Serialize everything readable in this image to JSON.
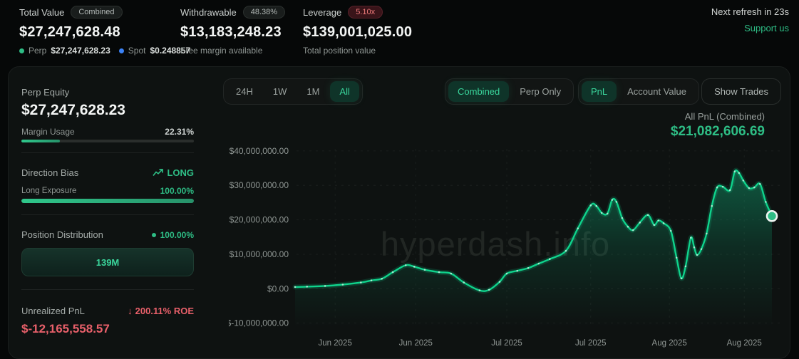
{
  "colors": {
    "accent": "#2ebd85",
    "line": "#0fd38c",
    "negative": "#e8606a",
    "perp_dot": "#2ebd85",
    "spot_dot": "#3b82f6"
  },
  "top_bar": {
    "total_value": {
      "label": "Total Value",
      "badge": "Combined",
      "value": "$27,247,628.48",
      "perp_label": "Perp",
      "perp_value": "$27,247,628.23",
      "spot_label": "Spot",
      "spot_value": "$0.248857"
    },
    "withdrawable": {
      "label": "Withdrawable",
      "badge": "48.38%",
      "value": "$13,183,248.23",
      "subtitle": "Free margin available"
    },
    "leverage": {
      "label": "Leverage",
      "badge": "5.10x",
      "value": "$139,001,025.00",
      "subtitle": "Total position value"
    },
    "refresh_status": "Next refresh in 23s",
    "support_link": "Support us"
  },
  "sidebar": {
    "perp_equity_label": "Perp Equity",
    "perp_equity_value": "$27,247,628.23",
    "margin_usage_label": "Margin Usage",
    "margin_usage_value": "22.31%",
    "margin_usage_percent": 22.31,
    "direction_bias_label": "Direction Bias",
    "direction_bias_value": "LONG",
    "long_exposure_label": "Long Exposure",
    "long_exposure_value": "100.00%",
    "long_exposure_percent": 100,
    "position_distribution_label": "Position Distribution",
    "position_distribution_value": "100.00%",
    "position_bar_label": "139M",
    "unrealized_pnl_label": "Unrealized PnL",
    "unrealized_pnl_roe": "200.11% ROE",
    "unrealized_pnl_value": "$-12,165,558.57"
  },
  "toolbar": {
    "ranges": [
      {
        "label": "24H",
        "selected": false
      },
      {
        "label": "1W",
        "selected": false
      },
      {
        "label": "1M",
        "selected": false
      },
      {
        "label": "All",
        "selected": true
      }
    ],
    "modes": [
      {
        "label": "Combined",
        "selected": true
      },
      {
        "label": "Perp Only",
        "selected": false
      }
    ],
    "metrics": [
      {
        "label": "PnL",
        "selected": true
      },
      {
        "label": "Account Value",
        "selected": false
      }
    ],
    "show_trades_label": "Show Trades"
  },
  "pnl_header": {
    "label": "All PnL (Combined)",
    "value": "$21,082,606.69"
  },
  "chart_data": {
    "type": "area",
    "title": "All PnL (Combined)",
    "watermark": "hyperdash.info",
    "grid": "dashed",
    "legend": "none",
    "ylim": [
      -11100000,
      41000000
    ],
    "y_ticks": [
      {
        "label": "$40,000,000.00",
        "value": 40000000
      },
      {
        "label": "$30,000,000.00",
        "value": 30000000
      },
      {
        "label": "$20,000,000.00",
        "value": 20000000
      },
      {
        "label": "$10,000,000.00",
        "value": 10000000
      },
      {
        "label": "$0.00",
        "value": 0
      },
      {
        "label": "$-10,000,000.00",
        "value": -10000000
      }
    ],
    "x_ticks": [
      {
        "label": "Jun 2025",
        "f": 0.084
      },
      {
        "label": "Jun 2025",
        "f": 0.253
      },
      {
        "label": "Jul 2025",
        "f": 0.444
      },
      {
        "label": "Jul 2025",
        "f": 0.62
      },
      {
        "label": "Aug 2025",
        "f": 0.785
      },
      {
        "label": "Aug 2025",
        "f": 0.942
      }
    ],
    "series": [
      {
        "name": "All PnL (Combined)",
        "color": "#0fd38c",
        "end_value_label": "$21,082,606.69",
        "points_f_millions": [
          [
            0.0,
            0.5
          ],
          [
            0.025,
            0.6
          ],
          [
            0.063,
            0.8
          ],
          [
            0.1,
            1.2
          ],
          [
            0.138,
            1.8
          ],
          [
            0.16,
            2.4
          ],
          [
            0.182,
            2.9
          ],
          [
            0.205,
            4.8
          ],
          [
            0.232,
            6.8
          ],
          [
            0.25,
            6.4
          ],
          [
            0.272,
            5.5
          ],
          [
            0.302,
            4.8
          ],
          [
            0.327,
            4.4
          ],
          [
            0.354,
            1.8
          ],
          [
            0.387,
            -0.5
          ],
          [
            0.407,
            -0.3
          ],
          [
            0.429,
            2.0
          ],
          [
            0.444,
            4.4
          ],
          [
            0.466,
            5.2
          ],
          [
            0.489,
            6.0
          ],
          [
            0.511,
            7.3
          ],
          [
            0.534,
            8.6
          ],
          [
            0.568,
            11.0
          ],
          [
            0.593,
            17.5
          ],
          [
            0.62,
            24.2
          ],
          [
            0.632,
            24.0
          ],
          [
            0.643,
            22.0
          ],
          [
            0.655,
            21.8
          ],
          [
            0.665,
            25.8
          ],
          [
            0.674,
            25.2
          ],
          [
            0.686,
            20.5
          ],
          [
            0.698,
            18.0
          ],
          [
            0.709,
            17.0
          ],
          [
            0.723,
            19.2
          ],
          [
            0.74,
            21.4
          ],
          [
            0.753,
            18.5
          ],
          [
            0.762,
            19.8
          ],
          [
            0.773,
            19.0
          ],
          [
            0.788,
            16.8
          ],
          [
            0.8,
            9.0
          ],
          [
            0.81,
            3.0
          ],
          [
            0.819,
            6.5
          ],
          [
            0.83,
            14.8
          ],
          [
            0.837,
            12.0
          ],
          [
            0.843,
            9.8
          ],
          [
            0.852,
            11.5
          ],
          [
            0.863,
            16.0
          ],
          [
            0.874,
            24.0
          ],
          [
            0.885,
            29.4
          ],
          [
            0.897,
            29.6
          ],
          [
            0.912,
            28.6
          ],
          [
            0.922,
            34.0
          ],
          [
            0.931,
            33.6
          ],
          [
            0.94,
            31.4
          ],
          [
            0.952,
            29.2
          ],
          [
            0.963,
            29.4
          ],
          [
            0.975,
            30.4
          ],
          [
            0.987,
            25.2
          ],
          [
            1.0,
            21.08
          ]
        ]
      }
    ]
  }
}
